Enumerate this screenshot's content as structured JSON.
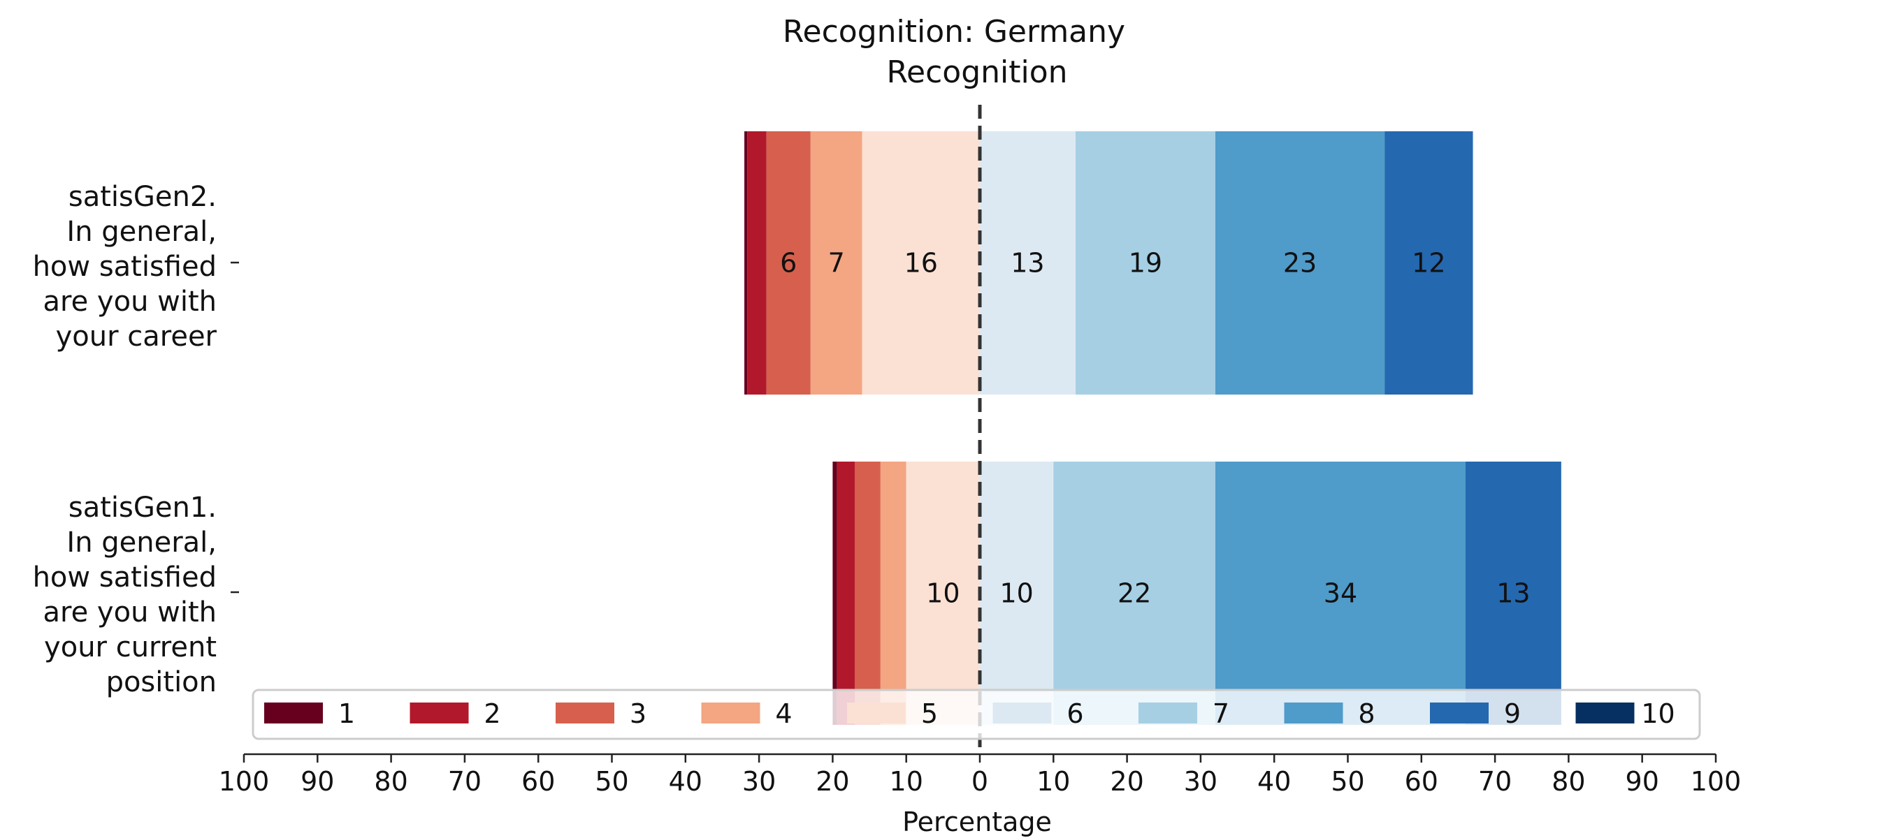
{
  "chart_data": {
    "type": "bar",
    "orientation": "horizontal-diverging",
    "title": "Recognition: Germany",
    "subtitle": "Recognition",
    "xlabel": "Percentage",
    "xlim": [
      -100,
      100
    ],
    "xticks": [
      -100,
      -90,
      -80,
      -70,
      -60,
      -50,
      -40,
      -30,
      -20,
      -10,
      0,
      10,
      20,
      30,
      40,
      50,
      60,
      70,
      80,
      90,
      100
    ],
    "xtick_labels": [
      "100",
      "90",
      "80",
      "70",
      "60",
      "50",
      "40",
      "30",
      "20",
      "10",
      "0",
      "10",
      "20",
      "30",
      "40",
      "50",
      "60",
      "70",
      "80",
      "90",
      "100"
    ],
    "center_line": "dashed",
    "legend": {
      "placement": "bottom-center",
      "entries": [
        "1",
        "2",
        "3",
        "4",
        "5",
        "6",
        "7",
        "8",
        "9",
        "10"
      ],
      "colors": [
        "#67001f",
        "#b2182b",
        "#d6604d",
        "#f4a582",
        "#fbe1d4",
        "#dde9f2",
        "#a6cfe4",
        "#4f9bca",
        "#2468b0",
        "#053061"
      ]
    },
    "categories": [
      {
        "label_lines": [
          "satisGen2.",
          "In general,",
          "how satisfied",
          "are you with",
          "your career"
        ],
        "values": [
          0.4,
          2.6,
          6,
          7,
          16,
          13,
          19,
          23,
          12,
          0
        ],
        "labels": [
          "",
          "",
          "6",
          "7",
          "16",
          "13",
          "19",
          "23",
          "12",
          ""
        ]
      },
      {
        "label_lines": [
          "satisGen1.",
          "In general,",
          "how satisfied",
          "are you with",
          "your current",
          "position"
        ],
        "values": [
          0.6,
          2.4,
          3.5,
          3.5,
          10,
          10,
          22,
          34,
          13,
          0
        ],
        "labels": [
          "",
          "",
          "",
          "",
          "10",
          "10",
          "22",
          "34",
          "13",
          ""
        ]
      }
    ]
  }
}
